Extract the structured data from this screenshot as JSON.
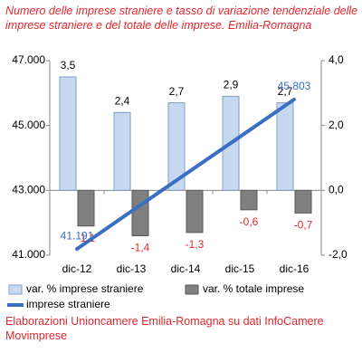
{
  "chart_data": {
    "type": "bar-line",
    "title": "Numero delle imprese straniere e tasso di variazione tendenziale delle imprese straniere e del totale delle imprese. Emilia-Romagna",
    "footer": "Elaborazioni Unioncamere Emilia-Romagna su dati InfoCamere Movimprese",
    "categories": [
      "dic-12",
      "dic-13",
      "dic-14",
      "dic-15",
      "dic-16"
    ],
    "series": [
      {
        "name": "var. % imprese straniere",
        "type": "bar",
        "axis": "y2",
        "color": "#c6d9f1",
        "values": [
          3.5,
          2.4,
          2.7,
          2.9,
          2.7
        ],
        "value_labels": [
          "3,5",
          "2,4",
          "2,7",
          "2,9",
          "2,7"
        ]
      },
      {
        "name": "var. % totale imprese",
        "type": "bar",
        "axis": "y2",
        "color": "#7f7f7f",
        "values": [
          -1.1,
          -1.4,
          -1.3,
          -0.6,
          -0.7
        ],
        "value_labels": [
          "-1,1",
          "-1,4",
          "-1,3",
          "-0,6",
          "-0,7"
        ]
      },
      {
        "name": "imprese straniere",
        "type": "line",
        "axis": "y",
        "color": "#3a6fc4",
        "values": [
          41191,
          42350,
          43500,
          44650,
          45803
        ],
        "value_labels": [
          "41.191",
          null,
          null,
          null,
          "45.803"
        ]
      }
    ],
    "ylim": [
      41000,
      47000
    ],
    "yticks": [
      {
        "value": 41000,
        "label": "41.000"
      },
      {
        "value": 43000,
        "label": "43.000"
      },
      {
        "value": 45000,
        "label": "45.000"
      },
      {
        "value": 47000,
        "label": "47.000"
      }
    ],
    "y2lim": [
      -2,
      4
    ],
    "y2ticks": [
      {
        "value": -2,
        "label": "-2,0"
      },
      {
        "value": 0,
        "label": "0,0"
      },
      {
        "value": 2,
        "label": "2,0"
      },
      {
        "value": 4,
        "label": "4,0"
      }
    ]
  }
}
